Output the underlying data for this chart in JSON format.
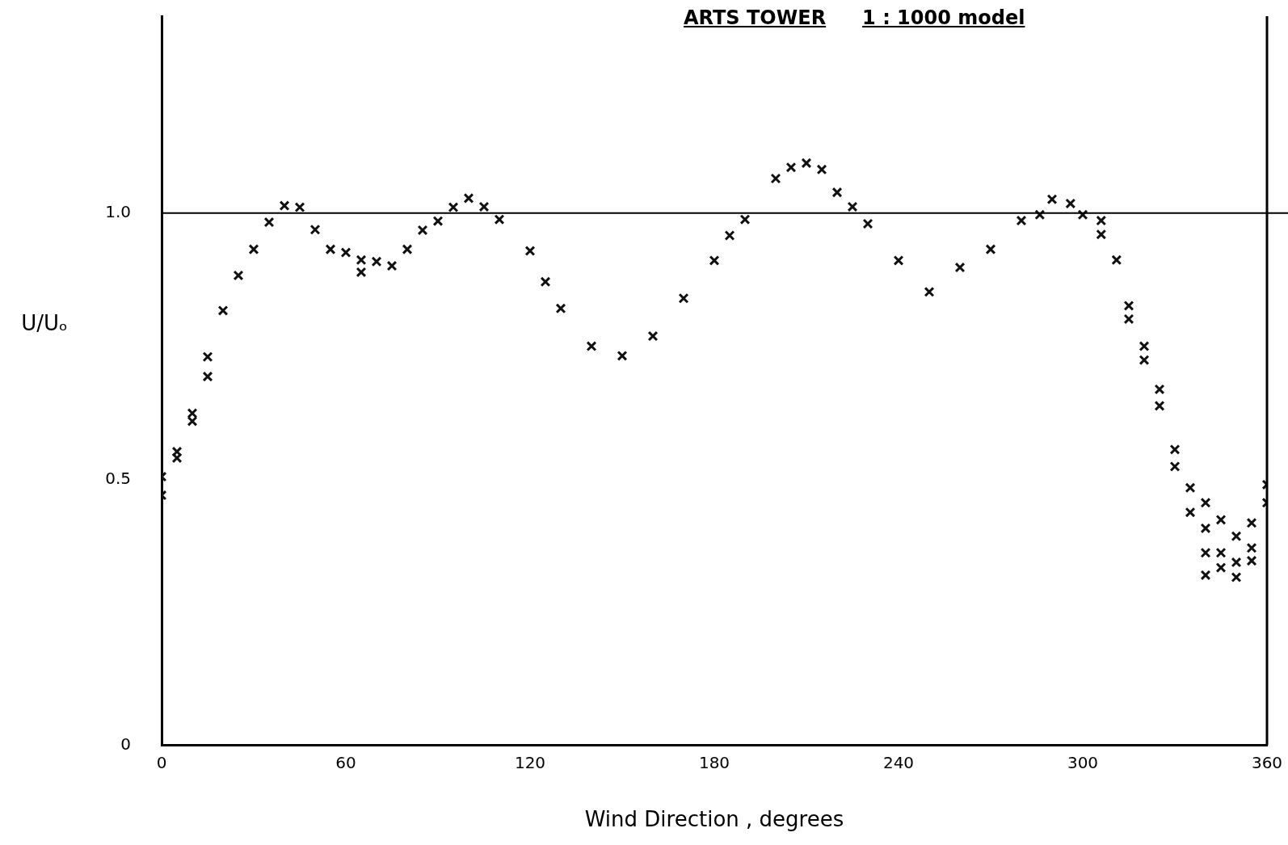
{
  "chart_data": {
    "type": "scatter",
    "title": "ARTS TOWER",
    "subtitle": "1 : 1000 model",
    "xlabel": "Wind Direction , degrees",
    "ylabel": "U/Uₒ",
    "xlim": [
      0,
      360
    ],
    "xticks": [
      0,
      60,
      120,
      180,
      240,
      300,
      360
    ],
    "ylim": [
      0,
      1.37
    ],
    "yticks": [
      0,
      0.5,
      {
        "value": 1,
        "label": "1.0"
      }
    ],
    "grid": false,
    "legend": false,
    "marker": "cross",
    "ref_lines": [
      {
        "axis": "y",
        "value": 1,
        "color": "#000000"
      }
    ],
    "series": [
      {
        "color": "#111111",
        "x": [
          0,
          0,
          5,
          5,
          10,
          10,
          15,
          15,
          20,
          25,
          30,
          35,
          40,
          45,
          50,
          55,
          60,
          65,
          65,
          70,
          75,
          80,
          85,
          90,
          95,
          100,
          105,
          110,
          120,
          125,
          130,
          140,
          150,
          160,
          170,
          180,
          185,
          190,
          200,
          205,
          210,
          215,
          220,
          225,
          230,
          240,
          250,
          260,
          270,
          280,
          286,
          290,
          296,
          300,
          306,
          306,
          311,
          315,
          315,
          320,
          320,
          325,
          325,
          330,
          330,
          335,
          335,
          340,
          340,
          340,
          340,
          345,
          345,
          345,
          350,
          350,
          350,
          355,
          355,
          355,
          360,
          360
        ],
        "values": [
          0.505,
          0.47,
          0.552,
          0.54,
          0.624,
          0.609,
          0.73,
          0.693,
          0.817,
          0.883,
          0.932,
          0.983,
          1.014,
          1.011,
          0.969,
          0.932,
          0.926,
          0.912,
          0.889,
          0.909,
          0.901,
          0.932,
          0.968,
          0.985,
          1.011,
          1.028,
          1.012,
          0.988,
          0.929,
          0.871,
          0.821,
          0.75,
          0.732,
          0.769,
          0.84,
          0.911,
          0.958,
          0.988,
          1.065,
          1.086,
          1.094,
          1.082,
          1.039,
          1.012,
          0.98,
          0.911,
          0.852,
          0.898,
          0.932,
          0.986,
          0.997,
          1.026,
          1.018,
          0.997,
          0.986,
          0.96,
          0.912,
          0.826,
          0.801,
          0.75,
          0.724,
          0.669,
          0.638,
          0.556,
          0.524,
          0.484,
          0.438,
          0.456,
          0.408,
          0.362,
          0.32,
          0.424,
          0.362,
          0.334,
          0.393,
          0.344,
          0.316,
          0.418,
          0.371,
          0.347,
          0.49,
          0.456
        ]
      }
    ]
  }
}
